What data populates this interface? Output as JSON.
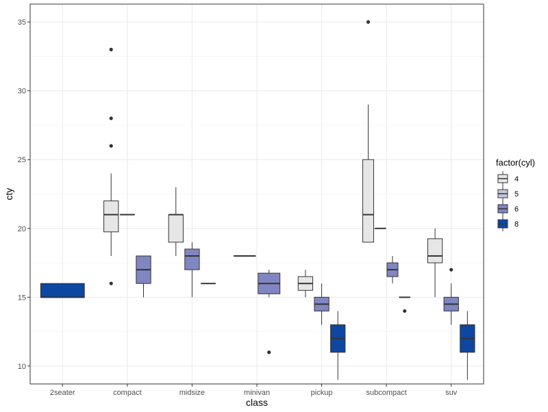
{
  "chart_data": {
    "type": "boxplot",
    "xlabel": "class",
    "ylabel": "cty",
    "ylim": [
      8.7,
      36.3
    ],
    "yticks": [
      10,
      15,
      20,
      25,
      30,
      35
    ],
    "grid": true,
    "legend": {
      "title": "factor(cyl)",
      "placement": "right",
      "entries": [
        {
          "label": "4",
          "color": "#e6e6e6"
        },
        {
          "label": "5",
          "color": "#c5c8df"
        },
        {
          "label": "6",
          "color": "#7f86c1"
        },
        {
          "label": "8",
          "color": "#0d47a1"
        }
      ]
    },
    "categories": [
      "2seater",
      "compact",
      "midsize",
      "minivan",
      "pickup",
      "subcompact",
      "suv"
    ],
    "boxes": [
      {
        "category": "2seater",
        "cyl": "8",
        "min": 15,
        "q1": 15,
        "median": 15,
        "q3": 16,
        "max": 16,
        "outliers": []
      },
      {
        "category": "compact",
        "cyl": "4",
        "min": 18,
        "q1": 19.75,
        "median": 21,
        "q3": 22,
        "max": 24,
        "outliers": [
          33,
          28,
          26,
          16
        ]
      },
      {
        "category": "compact",
        "cyl": "5",
        "min": 21,
        "q1": 21,
        "median": 21,
        "q3": 21,
        "max": 21,
        "outliers": []
      },
      {
        "category": "compact",
        "cyl": "6",
        "min": 15,
        "q1": 16,
        "median": 17,
        "q3": 18,
        "max": 18,
        "outliers": []
      },
      {
        "category": "midsize",
        "cyl": "4",
        "min": 18,
        "q1": 19,
        "median": 21,
        "q3": 21,
        "max": 23,
        "outliers": []
      },
      {
        "category": "midsize",
        "cyl": "6",
        "min": 15,
        "q1": 17,
        "median": 18,
        "q3": 18.5,
        "max": 19,
        "outliers": []
      },
      {
        "category": "midsize",
        "cyl": "8",
        "min": 16,
        "q1": 16,
        "median": 16,
        "q3": 16,
        "max": 16,
        "outliers": []
      },
      {
        "category": "minivan",
        "cyl": "4",
        "min": 18,
        "q1": 18,
        "median": 18,
        "q3": 18,
        "max": 18,
        "outliers": []
      },
      {
        "category": "minivan",
        "cyl": "6",
        "min": 15,
        "q1": 15.25,
        "median": 16,
        "q3": 16.75,
        "max": 17,
        "outliers": [
          11
        ]
      },
      {
        "category": "pickup",
        "cyl": "4",
        "min": 15,
        "q1": 15.5,
        "median": 16,
        "q3": 16.5,
        "max": 17,
        "outliers": []
      },
      {
        "category": "pickup",
        "cyl": "6",
        "min": 13,
        "q1": 14,
        "median": 14.5,
        "q3": 15,
        "max": 16,
        "outliers": []
      },
      {
        "category": "pickup",
        "cyl": "8",
        "min": 9,
        "q1": 11,
        "median": 12,
        "q3": 13,
        "max": 14,
        "outliers": []
      },
      {
        "category": "subcompact",
        "cyl": "4",
        "min": 19,
        "q1": 19,
        "median": 21,
        "q3": 25,
        "max": 29,
        "outliers": [
          35
        ]
      },
      {
        "category": "subcompact",
        "cyl": "5",
        "min": 20,
        "q1": 20,
        "median": 20,
        "q3": 20,
        "max": 20,
        "outliers": []
      },
      {
        "category": "subcompact",
        "cyl": "6",
        "min": 16,
        "q1": 16.5,
        "median": 17,
        "q3": 17.5,
        "max": 18,
        "outliers": []
      },
      {
        "category": "subcompact",
        "cyl": "8",
        "min": 15,
        "q1": 15,
        "median": 15,
        "q3": 15,
        "max": 15,
        "outliers": [
          14
        ]
      },
      {
        "category": "suv",
        "cyl": "4",
        "min": 15,
        "q1": 17.5,
        "median": 18,
        "q3": 19.25,
        "max": 20,
        "outliers": []
      },
      {
        "category": "suv",
        "cyl": "6",
        "min": 13,
        "q1": 14,
        "median": 14.5,
        "q3": 15,
        "max": 16,
        "outliers": [
          17
        ]
      },
      {
        "category": "suv",
        "cyl": "8",
        "min": 9,
        "q1": 11,
        "median": 12,
        "q3": 13,
        "max": 14,
        "outliers": []
      }
    ]
  }
}
